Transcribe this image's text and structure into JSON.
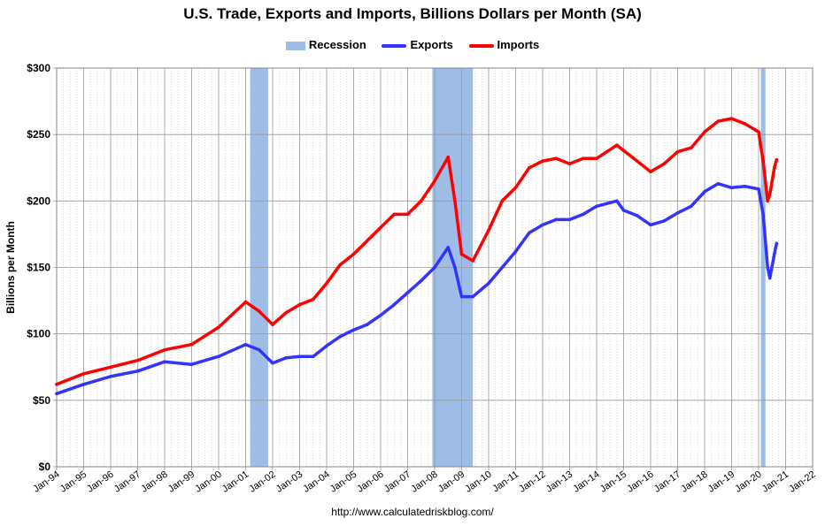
{
  "chart_data": {
    "type": "line",
    "title": "U.S. Trade, Exports and Imports, Billions Dollars per Month (SA)",
    "ylabel": "Billions per Month",
    "xlabel": "",
    "ylim": [
      0,
      300
    ],
    "xlim": [
      "Jan-94",
      "Jan-22"
    ],
    "y_ticks": [
      "$0",
      "$50",
      "$100",
      "$150",
      "$200",
      "$250",
      "$300"
    ],
    "x_ticks": [
      "Jan-94",
      "Jan-95",
      "Jan-96",
      "Jan-97",
      "Jan-98",
      "Jan-99",
      "Jan-00",
      "Jan-01",
      "Jan-02",
      "Jan-03",
      "Jan-04",
      "Jan-05",
      "Jan-06",
      "Jan-07",
      "Jan-08",
      "Jan-09",
      "Jan-10",
      "Jan-11",
      "Jan-12",
      "Jan-13",
      "Jan-14",
      "Jan-15",
      "Jan-16",
      "Jan-17",
      "Jan-18",
      "Jan-19",
      "Jan-20",
      "Jan-21",
      "Jan-22"
    ],
    "grid": true,
    "legend_position": "top-center",
    "recessions": [
      [
        "Mar-01",
        "Nov-01"
      ],
      [
        "Dec-07",
        "Jun-09"
      ],
      [
        "Feb-20",
        "Apr-20"
      ]
    ],
    "series": [
      {
        "name": "Recession",
        "color": "#9dbde8",
        "type": "band"
      },
      {
        "name": "Exports",
        "color": "#3333ff",
        "x": [
          "Jan-94",
          "Jan-95",
          "Jan-96",
          "Jan-97",
          "Jan-98",
          "Jan-99",
          "Jan-00",
          "Jan-01",
          "Jul-01",
          "Jan-02",
          "Jul-02",
          "Jan-03",
          "Jul-03",
          "Jan-04",
          "Jul-04",
          "Jan-05",
          "Jul-05",
          "Jan-06",
          "Jul-06",
          "Jan-07",
          "Jul-07",
          "Jan-08",
          "Jul-08",
          "Oct-08",
          "Jan-09",
          "Jun-09",
          "Jan-10",
          "Jul-10",
          "Jan-11",
          "Jul-11",
          "Jan-12",
          "Jul-12",
          "Jan-13",
          "Jul-13",
          "Jan-14",
          "Oct-14",
          "Jan-15",
          "Jul-15",
          "Jan-16",
          "Jul-16",
          "Jan-17",
          "Jul-17",
          "Jan-18",
          "Jul-18",
          "Jan-19",
          "Jul-19",
          "Jan-20",
          "Mar-20",
          "May-20",
          "Jun-20",
          "Aug-20",
          "Sep-20"
        ],
        "values": [
          55,
          62,
          68,
          72,
          79,
          77,
          83,
          92,
          88,
          78,
          82,
          83,
          83,
          91,
          98,
          103,
          107,
          114,
          122,
          131,
          140,
          150,
          165,
          150,
          128,
          128,
          138,
          150,
          162,
          176,
          182,
          186,
          186,
          190,
          196,
          200,
          193,
          189,
          182,
          185,
          191,
          196,
          207,
          213,
          210,
          211,
          209,
          190,
          150,
          142,
          160,
          168
        ]
      },
      {
        "name": "Imports",
        "color": "#ff0000",
        "x": [
          "Jan-94",
          "Jan-95",
          "Jan-96",
          "Jan-97",
          "Jan-98",
          "Jan-99",
          "Jan-00",
          "Jan-01",
          "Jul-01",
          "Jan-02",
          "Jul-02",
          "Jan-03",
          "Jul-03",
          "Jan-04",
          "Jul-04",
          "Jan-05",
          "Jul-05",
          "Jan-06",
          "Jul-06",
          "Jan-07",
          "Jul-07",
          "Jan-08",
          "Jul-08",
          "Oct-08",
          "Jan-09",
          "Jun-09",
          "Jan-10",
          "Jul-10",
          "Jan-11",
          "Jul-11",
          "Jan-12",
          "Jul-12",
          "Jan-13",
          "Jul-13",
          "Jan-14",
          "Oct-14",
          "Jan-15",
          "Jul-15",
          "Jan-16",
          "Jul-16",
          "Jan-17",
          "Jul-17",
          "Jan-18",
          "Jul-18",
          "Jan-19",
          "Jul-19",
          "Jan-20",
          "Mar-20",
          "May-20",
          "Jun-20",
          "Aug-20",
          "Sep-20"
        ],
        "values": [
          62,
          70,
          75,
          80,
          88,
          92,
          105,
          124,
          117,
          107,
          116,
          122,
          126,
          138,
          152,
          160,
          170,
          180,
          190,
          190,
          200,
          215,
          233,
          200,
          160,
          155,
          178,
          200,
          210,
          225,
          230,
          232,
          228,
          232,
          232,
          242,
          238,
          230,
          222,
          228,
          237,
          240,
          252,
          260,
          262,
          258,
          252,
          230,
          200,
          205,
          225,
          231
        ]
      }
    ]
  },
  "legend": {
    "recession": "Recession",
    "exports": "Exports",
    "imports": "Imports"
  },
  "source": "http://www.calculatedriskblog.com/"
}
